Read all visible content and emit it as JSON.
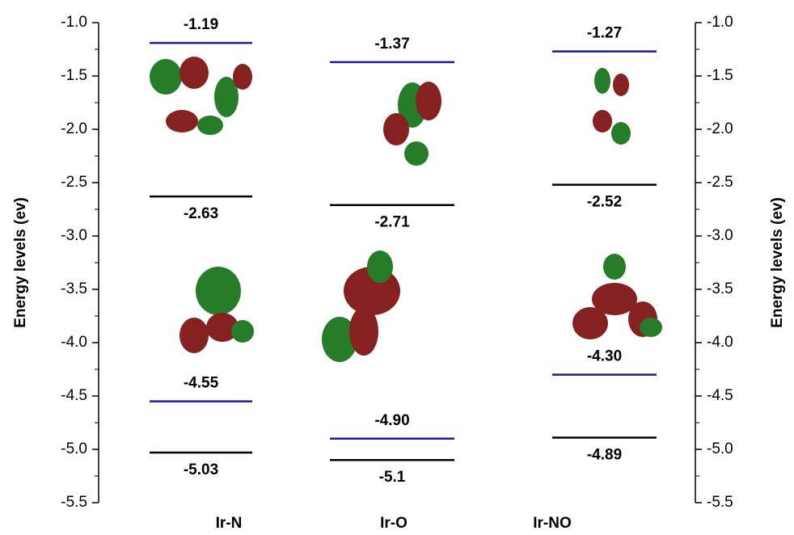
{
  "chart_data": {
    "type": "energy-level",
    "ylabel": "Energy levels (ev)",
    "y2label": "Energy levels (ev)",
    "categories": [
      "Ir-N",
      "Ir-O",
      "Ir-NO"
    ],
    "series": [
      {
        "color": "#1a1aa6",
        "values": [
          -1.19,
          -1.37,
          -1.27
        ]
      },
      {
        "color": "#000000",
        "values": [
          -2.63,
          -2.71,
          -2.52
        ]
      },
      {
        "color": "#1a1aa6",
        "values": [
          -4.55,
          -4.9,
          -4.3
        ],
        "value_labels": [
          "-4.55",
          "-4.90",
          "-4.30"
        ]
      },
      {
        "color": "#000000",
        "values": [
          -5.03,
          -5.1,
          -4.89
        ]
      }
    ],
    "ylim": [
      -5.5,
      -1.0
    ],
    "yticks": [
      {
        "value": -1.0,
        "label": "-1.0"
      },
      -1.5,
      {
        "value": -2.0,
        "label": "-2.0"
      },
      -2.5,
      {
        "value": -3.0,
        "label": "-3.0"
      },
      -3.5,
      {
        "value": -4.0,
        "label": "-4.0"
      },
      -4.5,
      {
        "value": -5.0,
        "label": "-5.0"
      },
      -5.5
    ],
    "y2lim": [
      -5.5,
      -1.0
    ],
    "y2ticks": [
      {
        "value": -1.0,
        "label": "-1.0"
      },
      -1.5,
      {
        "value": -2.0,
        "label": "-2.0"
      },
      -2.5,
      {
        "value": -3.0,
        "label": "-3.0"
      },
      -3.5,
      {
        "value": -4.0,
        "label": "-4.0"
      },
      -4.5,
      {
        "value": -5.0,
        "label": "-5.0"
      },
      -5.5
    ]
  }
}
